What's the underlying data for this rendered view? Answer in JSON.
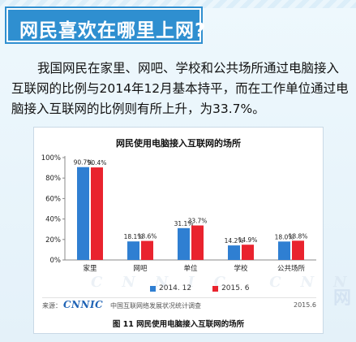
{
  "header": {
    "title": "网民喜欢在哪里上网?"
  },
  "paragraph": "我国网民在家里、网吧、学校和公共场所通过电脑接入互联网的比例与2014年12月基本持平，而在工作单位通过电脑接入互联网的比例则有所上升，为33.7%。",
  "chart_data": {
    "type": "bar",
    "title": "网民使用电脑接入互联网的场所",
    "categories": [
      "家里",
      "网吧",
      "单位",
      "学校",
      "公共场所"
    ],
    "series": [
      {
        "name": "2014. 12",
        "values": [
          90.7,
          18.1,
          31.1,
          14.2,
          18.0
        ],
        "color": "#2f7fd2"
      },
      {
        "name": "2015. 6",
        "values": [
          90.4,
          18.6,
          33.7,
          14.9,
          18.8
        ],
        "color": "#e9232e"
      }
    ],
    "value_labels": [
      [
        "90.7%",
        "18.1%",
        "31.1%",
        "14.2%",
        "18.0%"
      ],
      [
        "90.4%",
        "18.6%",
        "33.7%",
        "14.9%",
        "18.8%"
      ]
    ],
    "yticks": [
      "0%",
      "20%",
      "40%",
      "60%",
      "80%",
      "100%"
    ],
    "ylim": [
      0,
      100
    ],
    "legend_position": "bottom",
    "grid": false
  },
  "source": {
    "label": "来源：",
    "logo": "CNNIC",
    "org": "中国互联网络发展状况统计调查",
    "date": "2015.6"
  },
  "figure_caption": "图 11 网民使用电脑接入互联网的场所",
  "bg_watermark": "CNNIC CNNIC",
  "watermark": "网"
}
